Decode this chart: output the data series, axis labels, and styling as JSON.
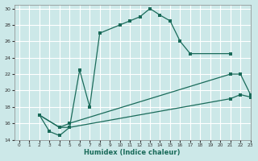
{
  "xlabel": "Humidex (Indice chaleur)",
  "bg_color": "#cce8e8",
  "grid_color": "#ffffff",
  "line_color": "#1a6b5a",
  "xlim": [
    -0.5,
    23
  ],
  "ylim": [
    14,
    30.5
  ],
  "xticks": [
    0,
    1,
    2,
    3,
    4,
    5,
    6,
    7,
    8,
    9,
    10,
    11,
    12,
    13,
    14,
    15,
    16,
    17,
    18,
    19,
    20,
    21,
    22,
    23
  ],
  "yticks": [
    14,
    16,
    18,
    20,
    22,
    24,
    26,
    28,
    30
  ],
  "line1_x": [
    2,
    3,
    4,
    5,
    6,
    7,
    8,
    10,
    11,
    12,
    13,
    14,
    15,
    16,
    17,
    21
  ],
  "line1_y": [
    17,
    15,
    14.5,
    15.5,
    22.5,
    18,
    27,
    28,
    28.5,
    29,
    30,
    29.2,
    28.5,
    26,
    24.5,
    24.5
  ],
  "line2_x": [
    2,
    4,
    5,
    21,
    22,
    23
  ],
  "line2_y": [
    17,
    15.5,
    16,
    22,
    22,
    19.5
  ],
  "line3_x": [
    2,
    4,
    5,
    21,
    22,
    23
  ],
  "line3_y": [
    17,
    15.5,
    15.5,
    19,
    19.5,
    19.2
  ]
}
